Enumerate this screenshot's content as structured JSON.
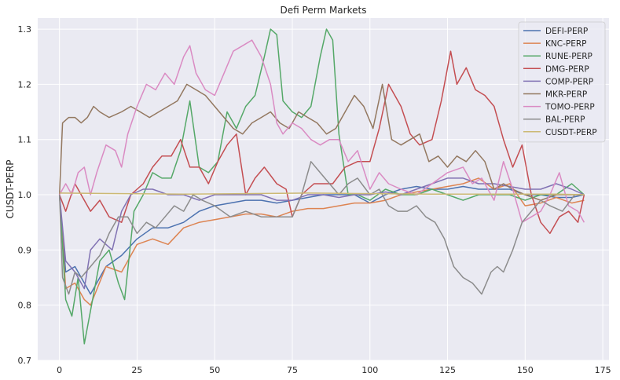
{
  "chart_data": {
    "type": "line",
    "title": "Defi Perm Markets",
    "xlabel": "",
    "ylabel": "CUSDT-PERP",
    "xlim": [
      -7,
      177
    ],
    "ylim": [
      0.7,
      1.32
    ],
    "xticks": [
      0,
      25,
      50,
      75,
      100,
      125,
      150,
      175
    ],
    "yticks": [
      0.7,
      0.8,
      0.9,
      1.0,
      1.1,
      1.2,
      1.3
    ],
    "grid": true,
    "background": "#eaeaf2",
    "legend_position": "top-right",
    "series": [
      {
        "name": "DEFI-PERP",
        "color": "#4c72b0",
        "x": [
          0,
          2,
          5,
          8,
          10,
          15,
          20,
          25,
          30,
          35,
          40,
          45,
          50,
          55,
          60,
          65,
          70,
          75,
          80,
          85,
          90,
          95,
          100,
          105,
          110,
          115,
          120,
          125,
          130,
          135,
          140,
          145,
          150,
          155,
          160,
          165,
          169
        ],
        "y": [
          1.0,
          0.86,
          0.87,
          0.84,
          0.82,
          0.87,
          0.89,
          0.92,
          0.94,
          0.94,
          0.95,
          0.97,
          0.98,
          0.985,
          0.99,
          0.99,
          0.985,
          0.99,
          0.995,
          1.0,
          1.0,
          1.0,
          0.985,
          1.0,
          1.01,
          1.015,
          1.01,
          1.01,
          1.015,
          1.01,
          1.01,
          1.01,
          1.0,
          1.0,
          0.995,
          0.995,
          1.0
        ]
      },
      {
        "name": "KNC-PERP",
        "color": "#dd8452",
        "x": [
          0,
          2,
          5,
          8,
          10,
          15,
          20,
          25,
          30,
          35,
          40,
          45,
          50,
          55,
          60,
          65,
          70,
          75,
          80,
          85,
          90,
          95,
          100,
          105,
          110,
          115,
          120,
          125,
          130,
          135,
          140,
          145,
          150,
          155,
          160,
          165,
          169
        ],
        "y": [
          1.0,
          0.83,
          0.84,
          0.81,
          0.8,
          0.87,
          0.86,
          0.91,
          0.92,
          0.91,
          0.94,
          0.95,
          0.955,
          0.96,
          0.965,
          0.965,
          0.96,
          0.97,
          0.975,
          0.975,
          0.98,
          0.985,
          0.985,
          0.99,
          1.0,
          1.005,
          1.01,
          1.015,
          1.02,
          1.03,
          1.01,
          1.02,
          0.98,
          0.985,
          0.995,
          0.985,
          0.99
        ]
      },
      {
        "name": "RUNE-PERP",
        "color": "#55a868",
        "x": [
          0,
          2,
          4,
          6,
          8,
          10,
          13,
          16,
          19,
          21,
          24,
          27,
          30,
          33,
          36,
          39,
          42,
          45,
          48,
          51,
          54,
          57,
          60,
          63,
          66,
          68,
          70,
          72,
          75,
          78,
          81,
          84,
          86,
          88,
          90,
          93,
          96,
          100,
          105,
          110,
          115,
          120,
          125,
          130,
          135,
          140,
          145,
          150,
          155,
          160,
          165,
          169
        ],
        "y": [
          1.0,
          0.81,
          0.78,
          0.85,
          0.73,
          0.79,
          0.88,
          0.9,
          0.84,
          0.81,
          0.97,
          1.0,
          1.04,
          1.03,
          1.03,
          1.08,
          1.17,
          1.05,
          1.04,
          1.06,
          1.15,
          1.12,
          1.16,
          1.18,
          1.25,
          1.3,
          1.29,
          1.17,
          1.15,
          1.14,
          1.16,
          1.25,
          1.3,
          1.28,
          1.11,
          1.0,
          1.0,
          0.99,
          1.01,
          1.0,
          1.0,
          1.01,
          1.0,
          0.99,
          1.0,
          1.0,
          1.0,
          0.99,
          1.0,
          1.0,
          1.02,
          1.0
        ]
      },
      {
        "name": "DMG-PERP",
        "color": "#c44e52",
        "x": [
          0,
          2,
          5,
          8,
          10,
          13,
          16,
          20,
          23,
          27,
          30,
          33,
          36,
          39,
          42,
          45,
          48,
          51,
          54,
          57,
          60,
          63,
          66,
          70,
          73,
          75,
          78,
          82,
          85,
          88,
          92,
          96,
          100,
          103,
          106,
          110,
          113,
          116,
          120,
          123,
          126,
          128,
          131,
          134,
          137,
          140,
          143,
          146,
          149,
          152,
          155,
          158,
          161,
          164,
          167,
          169
        ],
        "y": [
          1.0,
          0.97,
          1.02,
          0.99,
          0.97,
          0.99,
          0.96,
          0.95,
          1.0,
          1.02,
          1.05,
          1.07,
          1.07,
          1.1,
          1.05,
          1.05,
          1.02,
          1.06,
          1.09,
          1.11,
          1.0,
          1.03,
          1.05,
          1.02,
          1.01,
          0.96,
          1.0,
          1.02,
          1.02,
          1.02,
          1.05,
          1.06,
          1.06,
          1.12,
          1.2,
          1.16,
          1.11,
          1.09,
          1.1,
          1.17,
          1.26,
          1.2,
          1.23,
          1.19,
          1.18,
          1.16,
          1.1,
          1.05,
          1.09,
          1.0,
          0.95,
          0.93,
          0.96,
          0.97,
          0.95,
          1.0
        ]
      },
      {
        "name": "COMP-PERP",
        "color": "#8172b3",
        "x": [
          0,
          2,
          5,
          8,
          10,
          13,
          17,
          20,
          23,
          27,
          30,
          35,
          40,
          45,
          50,
          55,
          60,
          65,
          70,
          75,
          80,
          85,
          90,
          95,
          100,
          105,
          110,
          115,
          120,
          125,
          130,
          135,
          140,
          145,
          150,
          155,
          160,
          165,
          169
        ],
        "y": [
          1.0,
          0.88,
          0.86,
          0.83,
          0.9,
          0.92,
          0.9,
          0.97,
          1.0,
          1.01,
          1.01,
          1.0,
          1.0,
          0.99,
          1.0,
          1.0,
          1.0,
          1.0,
          0.99,
          0.99,
          1.0,
          1.0,
          0.995,
          1.0,
          1.0,
          1.005,
          1.0,
          1.01,
          1.02,
          1.03,
          1.03,
          1.02,
          1.02,
          1.015,
          1.01,
          1.01,
          1.02,
          1.01,
          1.0
        ]
      },
      {
        "name": "MKR-PERP",
        "color": "#937860",
        "x": [
          0,
          1,
          3,
          5,
          7,
          9,
          11,
          13,
          16,
          20,
          23,
          26,
          29,
          32,
          35,
          38,
          41,
          44,
          47,
          50,
          53,
          56,
          59,
          62,
          65,
          68,
          71,
          74,
          77,
          80,
          83,
          86,
          89,
          92,
          95,
          98,
          101,
          104,
          107,
          110,
          113,
          116,
          119,
          122,
          125,
          128,
          131,
          134,
          137,
          140,
          143,
          146,
          150,
          155,
          160,
          165,
          169
        ],
        "y": [
          1.0,
          1.13,
          1.14,
          1.14,
          1.13,
          1.14,
          1.16,
          1.15,
          1.14,
          1.15,
          1.16,
          1.15,
          1.14,
          1.15,
          1.16,
          1.17,
          1.2,
          1.19,
          1.18,
          1.16,
          1.14,
          1.12,
          1.11,
          1.13,
          1.14,
          1.15,
          1.13,
          1.12,
          1.15,
          1.14,
          1.13,
          1.11,
          1.12,
          1.15,
          1.18,
          1.16,
          1.12,
          1.2,
          1.1,
          1.09,
          1.1,
          1.11,
          1.06,
          1.07,
          1.05,
          1.07,
          1.06,
          1.08,
          1.06,
          1.01,
          1.02,
          1.01,
          1.0,
          0.99,
          1.0,
          1.0,
          1.0
        ]
      },
      {
        "name": "TOMO-PERP",
        "color": "#da8bc3",
        "x": [
          0,
          2,
          4,
          6,
          8,
          10,
          12,
          15,
          18,
          20,
          22,
          25,
          28,
          31,
          34,
          37,
          40,
          42,
          44,
          47,
          50,
          53,
          56,
          59,
          62,
          65,
          68,
          70,
          72,
          75,
          78,
          81,
          84,
          87,
          90,
          93,
          96,
          100,
          103,
          106,
          110,
          115,
          120,
          125,
          130,
          133,
          136,
          140,
          143,
          146,
          149,
          152,
          155,
          158,
          161,
          164,
          167,
          169
        ],
        "y": [
          1.0,
          1.02,
          1.0,
          1.04,
          1.05,
          1.0,
          1.04,
          1.09,
          1.08,
          1.05,
          1.11,
          1.16,
          1.2,
          1.19,
          1.22,
          1.2,
          1.25,
          1.27,
          1.22,
          1.19,
          1.18,
          1.22,
          1.26,
          1.27,
          1.28,
          1.25,
          1.2,
          1.13,
          1.11,
          1.13,
          1.12,
          1.1,
          1.09,
          1.1,
          1.1,
          1.06,
          1.08,
          1.01,
          1.04,
          1.02,
          1.01,
          1.0,
          1.02,
          1.04,
          1.05,
          1.02,
          1.03,
          0.99,
          1.06,
          1.01,
          0.95,
          0.96,
          0.97,
          1.0,
          1.04,
          0.98,
          0.97,
          0.95
        ]
      },
      {
        "name": "BAL-PERP",
        "color": "#8c8c8c",
        "x": [
          0,
          1,
          3,
          5,
          7,
          10,
          13,
          16,
          19,
          22,
          25,
          28,
          31,
          34,
          37,
          40,
          43,
          46,
          50,
          55,
          60,
          65,
          70,
          75,
          78,
          81,
          84,
          87,
          90,
          93,
          96,
          100,
          103,
          106,
          109,
          112,
          115,
          118,
          121,
          124,
          127,
          130,
          133,
          136,
          139,
          141,
          143,
          146,
          149,
          152,
          155,
          158,
          162,
          166,
          169
        ],
        "y": [
          1.0,
          0.85,
          0.82,
          0.86,
          0.85,
          0.87,
          0.89,
          0.93,
          0.96,
          0.96,
          0.93,
          0.95,
          0.94,
          0.96,
          0.98,
          0.97,
          1.0,
          0.99,
          0.98,
          0.96,
          0.97,
          0.96,
          0.96,
          0.96,
          1.0,
          1.06,
          1.04,
          1.02,
          1.0,
          1.02,
          1.03,
          1.0,
          1.01,
          0.98,
          0.97,
          0.97,
          0.98,
          0.96,
          0.95,
          0.92,
          0.87,
          0.85,
          0.84,
          0.82,
          0.86,
          0.87,
          0.86,
          0.9,
          0.95,
          0.97,
          0.99,
          0.98,
          0.97,
          1.0,
          1.0
        ]
      },
      {
        "name": "CUSDT-PERP",
        "color": "#ccb974",
        "x": [
          0,
          20,
          40,
          60,
          80,
          100,
          120,
          140,
          160,
          169
        ],
        "y": [
          1.003,
          1.002,
          1.001,
          1.002,
          1.003,
          1.002,
          1.001,
          1.001,
          1.001,
          1.0
        ]
      }
    ]
  }
}
